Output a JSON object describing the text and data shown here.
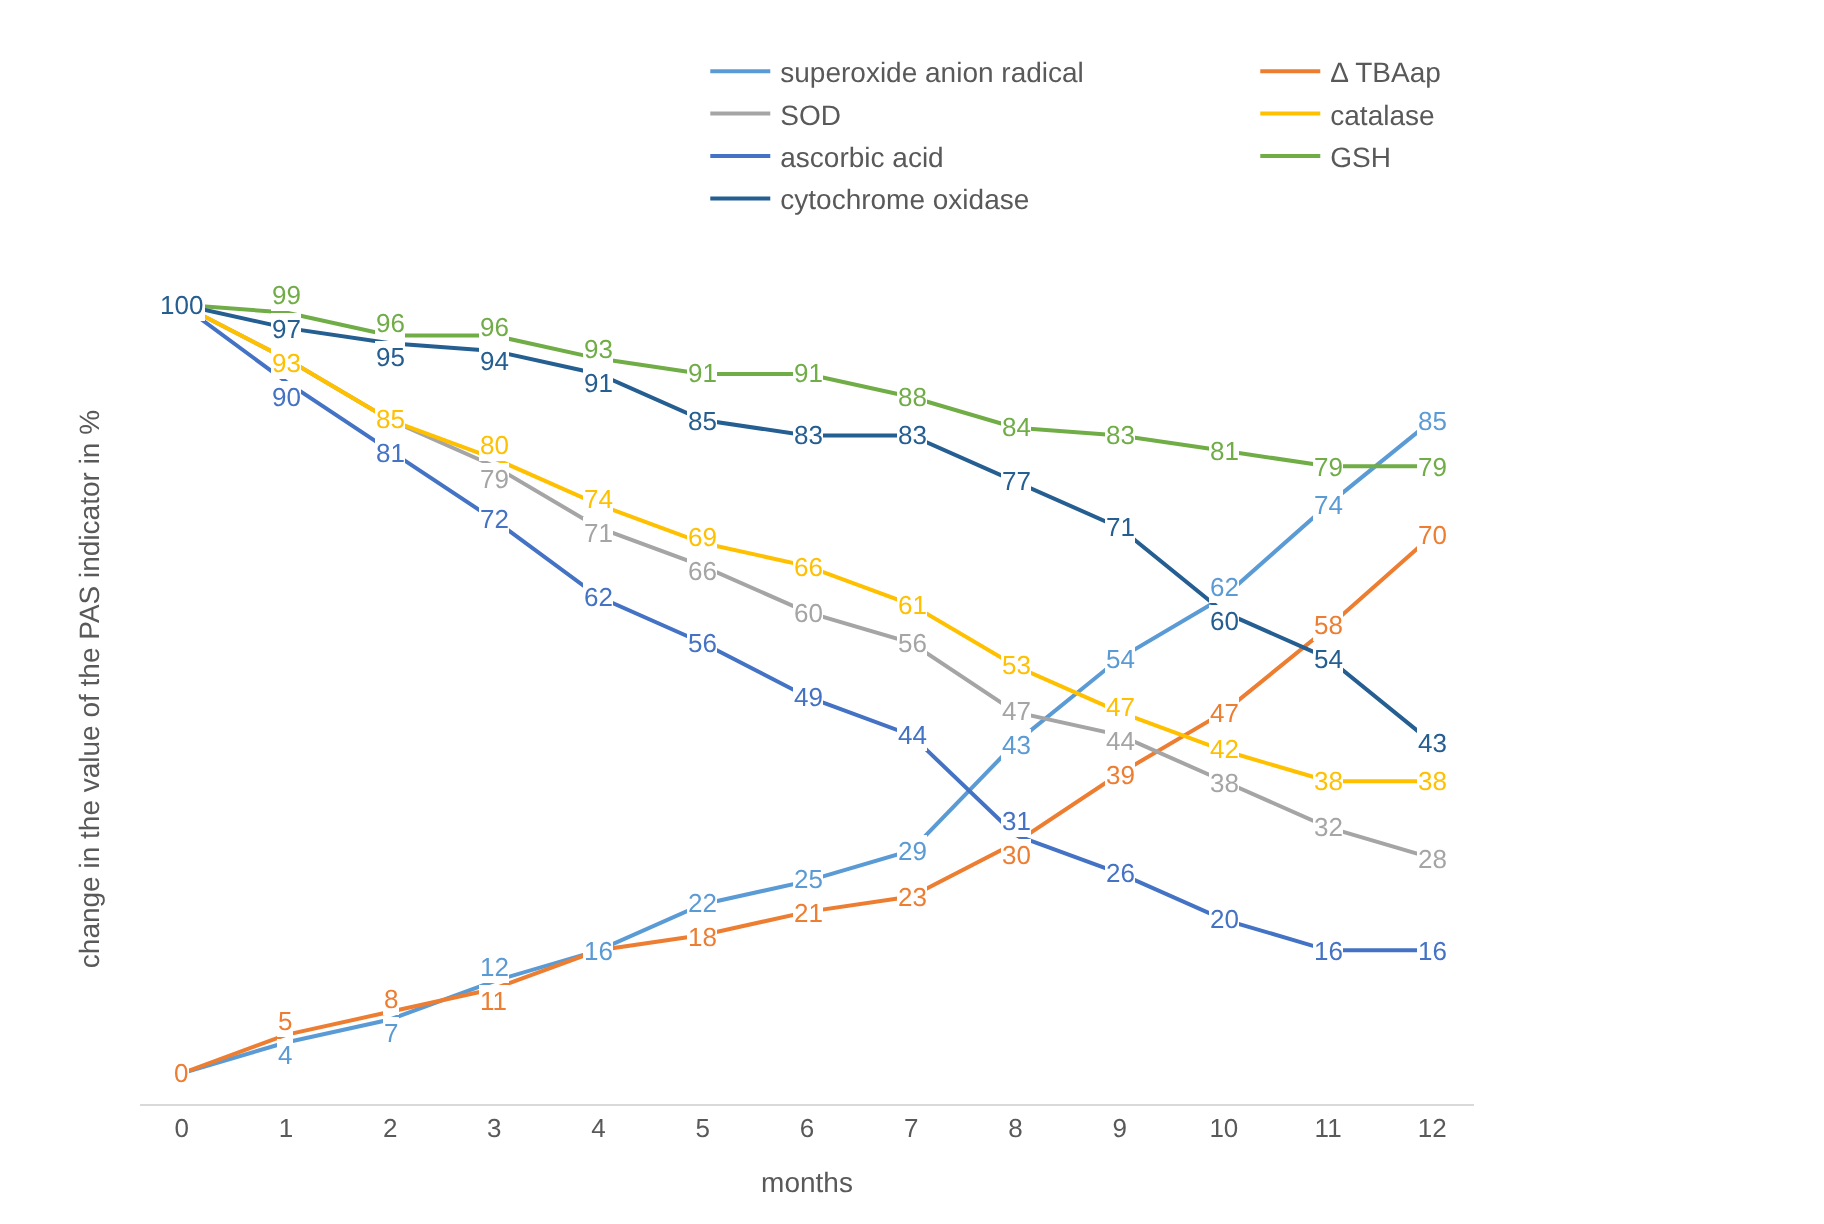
{
  "chart_data": {
    "type": "line",
    "xlabel": "months",
    "ylabel": "change in the value of the PAS indicator in %",
    "x": [
      0,
      1,
      2,
      3,
      4,
      5,
      6,
      7,
      8,
      9,
      10,
      11,
      12
    ],
    "xlim": [
      -0.4,
      12.4
    ],
    "xticks": [
      0,
      1,
      2,
      3,
      4,
      5,
      6,
      7,
      8,
      9,
      10,
      11,
      12
    ],
    "tick_labels": "x",
    "legend": "top right",
    "line_style": "solid",
    "series": [
      {
        "name": "superoxide anion radical",
        "color": "#5b9bd5",
        "values": [
          0,
          4,
          7,
          12,
          16,
          22,
          25,
          29,
          43,
          54,
          62,
          74,
          85
        ],
        "value_labels": [
          null,
          "4",
          "7",
          "12",
          "16",
          "22",
          "25",
          "29",
          "43",
          "54",
          "62",
          "74",
          "85"
        ]
      },
      {
        "name": "Δ TBAap",
        "color": "#ed7d31",
        "values": [
          0,
          5,
          8,
          11,
          16,
          18,
          21,
          23,
          30,
          39,
          47,
          58,
          70
        ],
        "value_labels": [
          "0",
          "5",
          "8",
          "11",
          null,
          "18",
          "21",
          "23",
          "30",
          "39",
          "47",
          "58",
          "70"
        ]
      },
      {
        "name": "SOD",
        "color": "#a5a5a5",
        "values": [
          100,
          93,
          85,
          79,
          71,
          66,
          60,
          56,
          47,
          44,
          38,
          32,
          28
        ],
        "value_labels": [
          null,
          null,
          null,
          "79",
          "71",
          "66",
          "60",
          "56",
          "47",
          "44",
          "38",
          "32",
          "28"
        ]
      },
      {
        "name": "catalase",
        "color": "#ffc000",
        "values": [
          100,
          93,
          85,
          80,
          74,
          69,
          66,
          61,
          53,
          47,
          42,
          38,
          38
        ],
        "value_labels": [
          null,
          "93",
          "85",
          "80",
          "74",
          "69",
          "66",
          "61",
          "53",
          "47",
          "42",
          "38",
          "38"
        ]
      },
      {
        "name": "ascorbic acid",
        "color": "#4472c4",
        "values": [
          100,
          90,
          81,
          72,
          62,
          56,
          49,
          44,
          31,
          26,
          20,
          16,
          16
        ],
        "value_labels": [
          null,
          "90",
          "81",
          "72",
          "62",
          "56",
          "49",
          "44",
          "31",
          "26",
          "20",
          "16",
          "16"
        ]
      },
      {
        "name": "GSH",
        "color": "#70ad47",
        "values": [
          100,
          99,
          96,
          96,
          93,
          91,
          91,
          88,
          84,
          83,
          81,
          79,
          79
        ],
        "value_labels": [
          null,
          "99",
          "96",
          "96",
          "93",
          "91",
          "91",
          "88",
          "84",
          "83",
          "81",
          "79",
          "79"
        ]
      },
      {
        "name": "cytochrome oxidase",
        "color": "#255e91",
        "values": [
          100,
          97,
          95,
          94,
          91,
          85,
          83,
          83,
          77,
          71,
          60,
          54,
          43
        ],
        "value_labels": [
          "100",
          "97",
          "95",
          "94",
          "91",
          "85",
          "83",
          "83",
          "77",
          "71",
          "60",
          "54",
          "43"
        ]
      }
    ]
  }
}
